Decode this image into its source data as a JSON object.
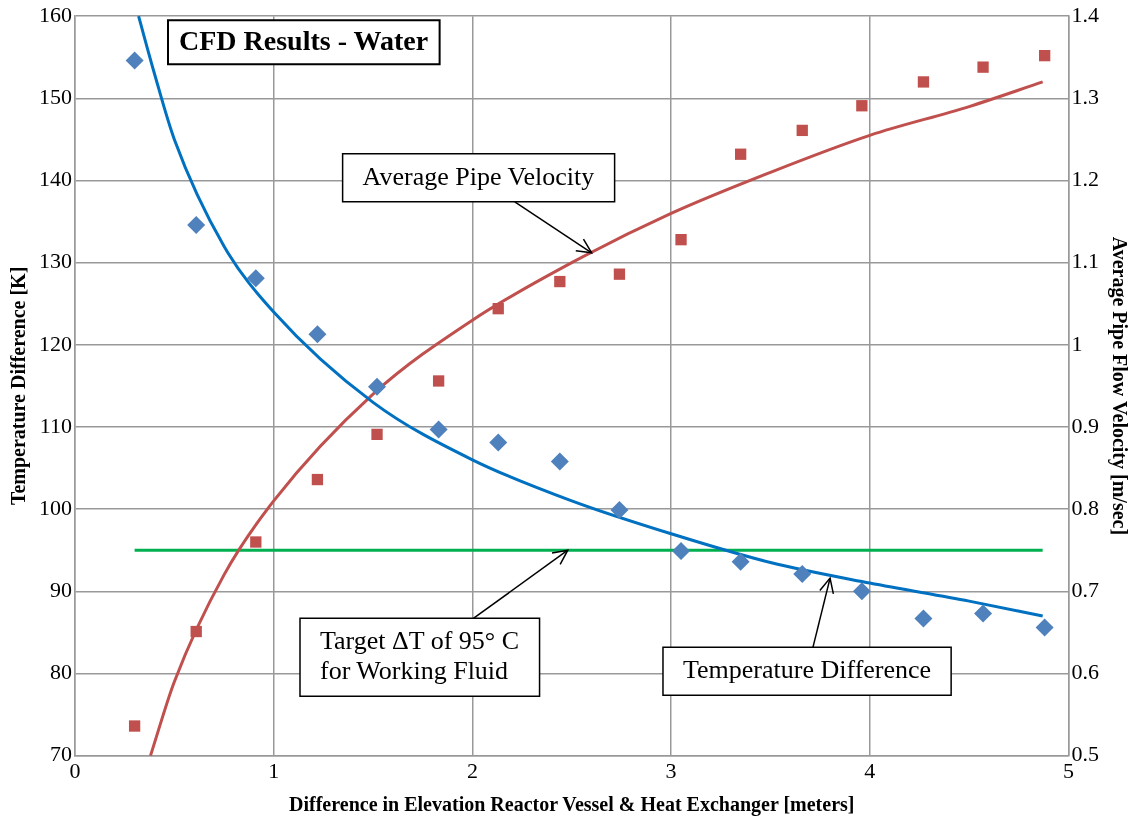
{
  "chart_data": {
    "type": "scatter",
    "title": "CFD Results - Water",
    "xlabel": "Difference in Elevation Reactor Vessel & Heat Exchanger [meters]",
    "ylabel": "Temperature Difference [K]",
    "y2label": "Average Pipe Flow Velocity [m/sec]",
    "x": [
      0.3,
      0.61,
      0.91,
      1.22,
      1.52,
      1.83,
      2.13,
      2.44,
      2.74,
      3.05,
      3.35,
      3.66,
      3.96,
      4.27,
      4.57,
      4.88
    ],
    "xlim": [
      0,
      5
    ],
    "xticks": [
      0,
      1,
      2,
      3,
      4,
      5
    ],
    "ylim": [
      70,
      160
    ],
    "yticks": [
      70,
      80,
      90,
      100,
      110,
      120,
      130,
      140,
      150,
      160
    ],
    "y2lim": [
      0.5,
      1.4
    ],
    "y2ticks": [
      0.5,
      0.6,
      0.7,
      0.8,
      0.9,
      1,
      1.1,
      1.2,
      1.3,
      1.4
    ],
    "grid": true,
    "series": [
      {
        "type": "scatter",
        "marker": "diamond",
        "color": "#4f81bd",
        "values": [
          154.6,
          134.6,
          128.1,
          121.3,
          114.9,
          109.7,
          108.1,
          105.8,
          99.9,
          94.9,
          93.6,
          92.1,
          90.0,
          86.7,
          87.3,
          85.6
        ]
      },
      {
        "type": "scatter",
        "marker": "square",
        "color": "#c0504d",
        "axis": "y2",
        "values": [
          0.536,
          0.651,
          0.76,
          0.836,
          0.891,
          0.956,
          1.044,
          1.077,
          1.086,
          1.128,
          1.232,
          1.261,
          1.291,
          1.32,
          1.338,
          1.352
        ]
      },
      {
        "type": "line",
        "marker": "none",
        "color": "#0070c0",
        "x": [
          0.32,
          0.4,
          0.5,
          0.75,
          1,
          1.5,
          2,
          2.5,
          3,
          3.5,
          4,
          4.5,
          4.87
        ],
        "values": [
          160,
          153,
          145,
          132,
          124,
          113,
          106,
          101,
          97,
          93.5,
          91,
          88.8,
          87
        ]
      },
      {
        "type": "line",
        "marker": "none",
        "color": "#c0504d",
        "axis": "y2",
        "x": [
          0.38,
          0.5,
          0.75,
          1,
          1.5,
          2,
          2.5,
          3,
          3.5,
          4,
          4.5,
          4.87
        ],
        "values": [
          0.5,
          0.59,
          0.72,
          0.81,
          0.94,
          1.03,
          1.1,
          1.16,
          1.21,
          1.255,
          1.29,
          1.32
        ]
      },
      {
        "type": "line",
        "marker": "none",
        "color": "#00b050",
        "x": [
          0.3,
          4.87
        ],
        "values": [
          95,
          95
        ]
      }
    ],
    "annotations": [
      {
        "text": "Average Pipe Velocity",
        "x": 2.6,
        "y": 131.2
      },
      {
        "text": "Target ΔT of 95° C\nfor Working Fluid",
        "x": 2.48,
        "y": 95
      },
      {
        "text": "Temperature Difference",
        "x": 3.8,
        "y": 91.6
      }
    ]
  }
}
